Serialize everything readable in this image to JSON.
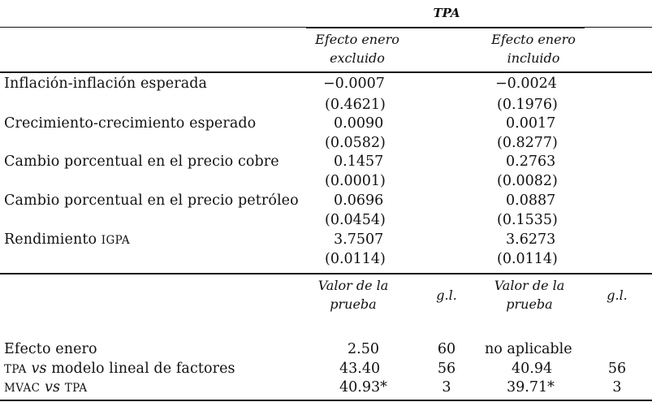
{
  "title": "TPA",
  "headers": {
    "excl_line1": "Efecto enero",
    "excl_line2": "excluido",
    "incl_line1": "Efecto enero",
    "incl_line2": "incluido"
  },
  "rows": [
    {
      "label": "Inflación-inflación esperada",
      "excl": "−0.0007",
      "excl_p": "(0.4621)",
      "incl": "−0.0024",
      "incl_p": "(0.1976)"
    },
    {
      "label": "Crecimiento-crecimiento esperado",
      "excl": "0.0090",
      "excl_p": "(0.0582)",
      "incl": "0.0017",
      "incl_p": "(0.8277)"
    },
    {
      "label": "Cambio porcentual en el precio cobre",
      "excl": "0.1457",
      "excl_p": "(0.0001)",
      "incl": "0.2763",
      "incl_p": "(0.0082)"
    },
    {
      "label": "Cambio porcentual en el precio petróleo",
      "excl": "0.0696",
      "excl_p": "(0.0454)",
      "incl": "0.0887",
      "incl_p": "(0.1535)"
    },
    {
      "label_main": "Rendimiento ",
      "label_sc": "IGPA",
      "excl": "3.7507",
      "excl_p": "(0.0114)",
      "incl": "3.6273",
      "incl_p": "(0.0114)"
    }
  ],
  "test_headers": {
    "valor_line1": "Valor de la",
    "valor_line2": "prueba",
    "gl": "g.l."
  },
  "tests": [
    {
      "label_a": "Efecto enero",
      "excl_val": "2.50",
      "excl_gl": "60",
      "incl_val": "no aplicable",
      "incl_gl": ""
    },
    {
      "label_a": "TPA",
      "label_vs": "vs",
      "label_b": " modelo lineal de factores",
      "excl_val": "43.40",
      "excl_gl": "56",
      "incl_val": "40.94",
      "incl_gl": "56"
    },
    {
      "label_a": "MVAC",
      "label_vs": "vs",
      "label_b": "TPA",
      "excl_val": "40.93*",
      "excl_gl": "3",
      "incl_val": "39.71*",
      "incl_gl": "3"
    }
  ]
}
